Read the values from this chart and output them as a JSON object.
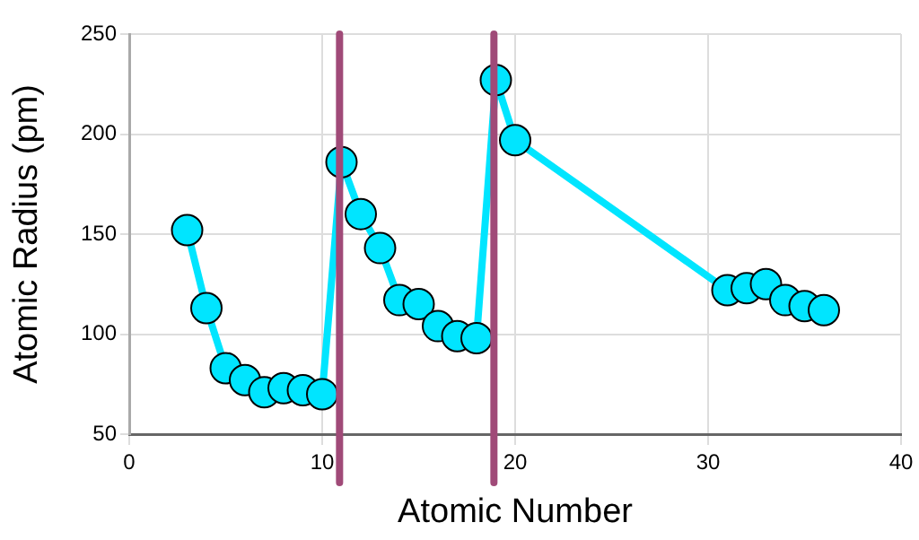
{
  "chart_data": {
    "type": "line",
    "xlabel": "Atomic Number",
    "ylabel": "Atomic Radius (pm)",
    "x": [
      3,
      4,
      5,
      6,
      7,
      8,
      9,
      10,
      11,
      12,
      13,
      14,
      15,
      16,
      17,
      18,
      19,
      20,
      31,
      32,
      33,
      34,
      35,
      36
    ],
    "series": [
      {
        "color": "#00e5ff",
        "values": [
          152,
          113,
          83,
          77,
          71,
          73,
          72,
          70,
          186,
          160,
          143,
          117,
          115,
          104,
          99,
          98,
          227,
          197,
          122,
          123,
          125,
          117,
          114,
          112
        ]
      }
    ],
    "xlim": [
      0,
      40
    ],
    "xticks": [
      0,
      10,
      20,
      30,
      40
    ],
    "ylim": [
      50,
      250
    ],
    "yticks": [
      50,
      100,
      150,
      200,
      250
    ],
    "ref_lines": [
      {
        "axis": "x",
        "value": 10.9,
        "color": "#a04a78"
      },
      {
        "axis": "x",
        "value": 18.9,
        "color": "#a04a78"
      }
    ],
    "grid": true,
    "marker": "circle",
    "line_style": "solid",
    "legend": false
  }
}
